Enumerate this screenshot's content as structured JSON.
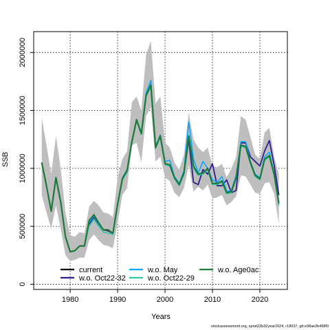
{
  "chart_data": {
    "type": "line",
    "xlabel": "Years",
    "ylabel": "SSB",
    "xlim": [
      1972.3,
      2025.8
    ],
    "ylim": [
      -45000,
      2180000
    ],
    "x_ticks": [
      1980,
      1990,
      2000,
      2010,
      2020
    ],
    "y_ticks": [
      0,
      500000,
      1000000,
      1500000,
      2000000
    ],
    "y_tick_labels": [
      "0",
      "500000",
      "1000000",
      "1500000",
      "2000000"
    ],
    "grid": true,
    "legend_position": "bottom-left",
    "colors": {
      "band": "#bebebe",
      "current": "#000000",
      "wo_oct22_32": "#2b1f8c",
      "wo_may": "#00a6ff",
      "wo_oct22_29": "#2ec4a6",
      "wo_age0ac": "#1f7a3a"
    },
    "years": [
      1974,
      1975,
      1976,
      1977,
      1978,
      1979,
      1980,
      1981,
      1982,
      1983,
      1984,
      1985,
      1986,
      1987,
      1988,
      1989,
      1990,
      1991,
      1992,
      1993,
      1994,
      1995,
      1996,
      1997,
      1998,
      1999,
      2000,
      2001,
      2002,
      2003,
      2004,
      2005,
      2006,
      2007,
      2008,
      2009,
      2010,
      2011,
      2012,
      2013,
      2014,
      2015,
      2016,
      2017,
      2018,
      2019,
      2020,
      2021,
      2022,
      2023,
      2024
    ],
    "band_upper": [
      1440000,
      1200000,
      950000,
      1280000,
      1000000,
      620000,
      420000,
      410000,
      450000,
      440000,
      670000,
      720000,
      680000,
      620000,
      610000,
      580000,
      920000,
      1080000,
      1150000,
      1570000,
      1620000,
      1500000,
      1980000,
      2100000,
      1560000,
      1620000,
      1220000,
      1180000,
      1050000,
      990000,
      1120000,
      1480000,
      1250000,
      1180000,
      1140000,
      1180000,
      1020000,
      1010000,
      1040000,
      920000,
      1000000,
      1100000,
      1450000,
      1420000,
      1270000,
      1120000,
      1080000,
      1310000,
      1350000,
      1100000,
      950000
    ],
    "band_lower": [
      770000,
      620000,
      480000,
      680000,
      480000,
      250000,
      200000,
      210000,
      230000,
      230000,
      380000,
      430000,
      380000,
      340000,
      330000,
      310000,
      530000,
      770000,
      830000,
      1200000,
      1220000,
      1050000,
      1450000,
      1530000,
      1060000,
      1100000,
      920000,
      890000,
      790000,
      750000,
      830000,
      1030000,
      800000,
      840000,
      810000,
      860000,
      740000,
      750000,
      770000,
      680000,
      710000,
      760000,
      940000,
      930000,
      860000,
      790000,
      780000,
      870000,
      880000,
      780000,
      520000
    ],
    "series": [
      {
        "name": "current",
        "values": [
          1050000,
          850000,
          630000,
          920000,
          710000,
          410000,
          280000,
          290000,
          330000,
          330000,
          520000,
          580000,
          520000,
          470000,
          460000,
          440000,
          690000,
          910000,
          980000,
          1230000,
          1420000,
          1300000,
          1630000,
          1720000,
          1180000,
          1280000,
          1040000,
          1030000,
          920000,
          860000,
          960000,
          1280000,
          1020000,
          950000,
          960000,
          1000000,
          870000,
          870000,
          890000,
          790000,
          800000,
          920000,
          1200000,
          1190000,
          1050000,
          940000,
          910000,
          1080000,
          1110000,
          950000,
          700000
        ]
      },
      {
        "name": "w.o. Oct22-32",
        "values": [
          1050000,
          850000,
          630000,
          920000,
          710000,
          410000,
          280000,
          290000,
          330000,
          330000,
          520000,
          580000,
          520000,
          470000,
          460000,
          440000,
          690000,
          910000,
          980000,
          1230000,
          1420000,
          1300000,
          1630000,
          1720000,
          1180000,
          1280000,
          1040000,
          1030000,
          920000,
          860000,
          960000,
          1250000,
          880000,
          860000,
          990000,
          950000,
          1040000,
          850000,
          850000,
          900000,
          790000,
          810000,
          1220000,
          1220000,
          1100000,
          1060000,
          1020000,
          1150000,
          1240000,
          1030000,
          770000
        ]
      },
      {
        "name": "w.o. May",
        "values": [
          1050000,
          850000,
          630000,
          920000,
          710000,
          410000,
          280000,
          290000,
          330000,
          330000,
          530000,
          590000,
          520000,
          470000,
          470000,
          440000,
          700000,
          920000,
          990000,
          1240000,
          1420000,
          1310000,
          1650000,
          1760000,
          1190000,
          1290000,
          1060000,
          1070000,
          930000,
          870000,
          980000,
          1400000,
          1080000,
          960000,
          1060000,
          1000000,
          900000,
          880000,
          930000,
          800000,
          810000,
          940000,
          1230000,
          1230000,
          1060000,
          950000,
          920000,
          1100000,
          1140000,
          960000,
          680000
        ]
      },
      {
        "name": "w.o. Oct22-29",
        "values": [
          1050000,
          850000,
          630000,
          920000,
          710000,
          410000,
          280000,
          290000,
          330000,
          330000,
          500000,
          560000,
          500000,
          450000,
          440000,
          430000,
          680000,
          900000,
          970000,
          1220000,
          1410000,
          1290000,
          1620000,
          1700000,
          1170000,
          1270000,
          1030000,
          1020000,
          910000,
          850000,
          950000,
          1270000,
          1000000,
          940000,
          950000,
          990000,
          860000,
          860000,
          880000,
          780000,
          790000,
          910000,
          1190000,
          1180000,
          1040000,
          930000,
          900000,
          1070000,
          1100000,
          940000,
          690000
        ]
      },
      {
        "name": "w.o. Age0ac",
        "values": [
          1050000,
          850000,
          630000,
          920000,
          710000,
          410000,
          280000,
          290000,
          330000,
          330000,
          550000,
          600000,
          530000,
          470000,
          470000,
          440000,
          690000,
          910000,
          980000,
          1230000,
          1420000,
          1300000,
          1630000,
          1720000,
          1180000,
          1280000,
          1040000,
          1030000,
          920000,
          860000,
          960000,
          1280000,
          1020000,
          950000,
          960000,
          1000000,
          870000,
          870000,
          890000,
          790000,
          800000,
          920000,
          1200000,
          1190000,
          1050000,
          940000,
          910000,
          1080000,
          1110000,
          950000,
          700000
        ]
      }
    ]
  },
  "footer_text": "stockassessment.org, sprat22b32year2024, r18037, git:e38ae2b498f0"
}
